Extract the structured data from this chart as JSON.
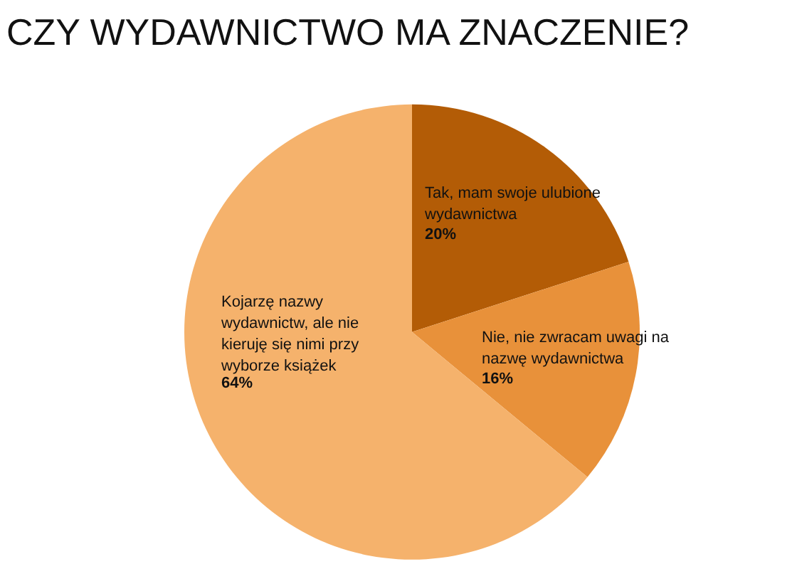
{
  "chart_data": {
    "type": "pie",
    "title": "CZY WYDAWNICTWO MA ZNACZENIE?",
    "categories": [
      "Tak, mam swoje ulubione\nwydawnictwa",
      "Nie, nie zwracam uwagi na\nnazwę wydawnictwa",
      "Kojarzę nazwy\nwydawnictw, ale nie\nkieruję się nimi przy\nwyborze książek"
    ],
    "values": [
      20,
      16,
      64
    ],
    "value_labels": [
      "20%",
      "16%",
      "64%"
    ],
    "colors": [
      "#b35c06",
      "#e8913a",
      "#f5b26c"
    ]
  }
}
